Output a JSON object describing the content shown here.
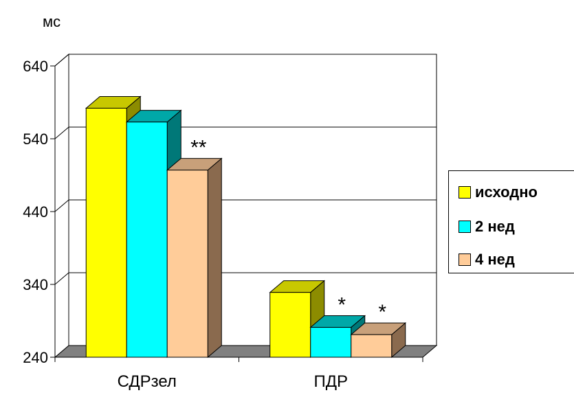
{
  "chart_data": {
    "type": "bar",
    "ylabel": "мс",
    "ylim": [
      240,
      640
    ],
    "yticks": [
      240,
      340,
      440,
      540,
      640
    ],
    "categories": [
      "СДРзел",
      "ПДР"
    ],
    "series": [
      {
        "name": "исходно",
        "values": [
          582,
          329
        ],
        "color": "#ffff00",
        "topColor": "#c8c800",
        "sideColor": "#8c8c00"
      },
      {
        "name": "2 нед",
        "values": [
          563,
          281
        ],
        "color": "#00ffff",
        "topColor": "#00a8a8",
        "sideColor": "#007878"
      },
      {
        "name": "4 нед",
        "values": [
          497,
          271
        ],
        "color": "#ffcc99",
        "topColor": "#c8a07a",
        "sideColor": "#8a6a4e"
      }
    ],
    "annotations": [
      {
        "category": 0,
        "series": 2,
        "text": "**"
      },
      {
        "category": 1,
        "series": 1,
        "text": "*"
      },
      {
        "category": 1,
        "series": 2,
        "text": "*"
      }
    ],
    "grid": true,
    "legend": "right"
  }
}
